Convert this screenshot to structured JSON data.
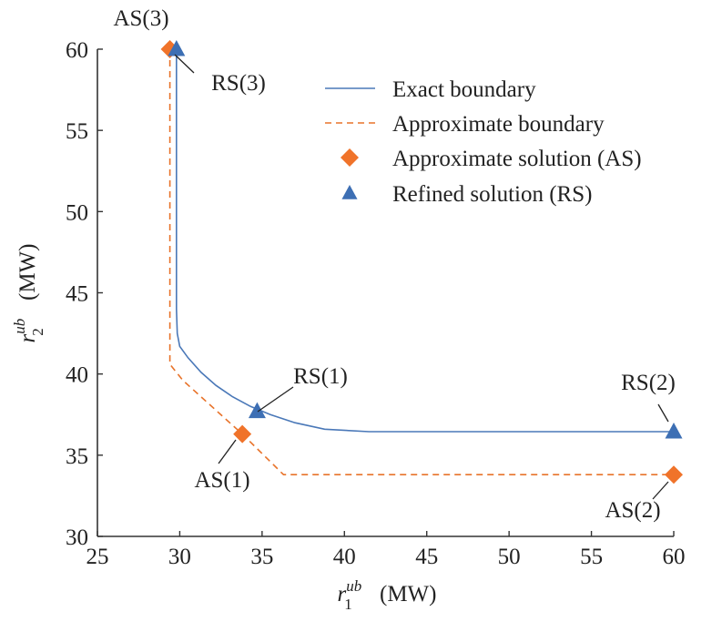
{
  "chart_data": {
    "type": "line",
    "title": "",
    "xlabel": {
      "base": "r",
      "sub": "1",
      "sup": "ub",
      "unit": "(MW)"
    },
    "ylabel": {
      "base": "r",
      "sub": "2",
      "sup": "ub",
      "unit": "(MW)"
    },
    "xlim": [
      25,
      60
    ],
    "ylim": [
      30,
      60
    ],
    "x_ticks": [
      25,
      30,
      35,
      40,
      45,
      50,
      55,
      60
    ],
    "y_ticks": [
      30,
      35,
      40,
      45,
      50,
      55,
      60
    ],
    "grid": false,
    "legend_position": "top-right",
    "colors": {
      "exact": "#4a78b8",
      "approx": "#e8732a",
      "as_marker": "#f0732a",
      "rs_marker": "#3d6fb4",
      "axis": "#333333"
    },
    "series": [
      {
        "name": "Exact boundary",
        "type": "line",
        "style": "solid",
        "points": [
          [
            29.8,
            60.0
          ],
          [
            29.8,
            44.0
          ],
          [
            29.85,
            42.5
          ],
          [
            30.0,
            41.7
          ],
          [
            30.5,
            41.0
          ],
          [
            31.3,
            40.1
          ],
          [
            32.2,
            39.3
          ],
          [
            33.2,
            38.6
          ],
          [
            34.3,
            38.0
          ],
          [
            35.5,
            37.5
          ],
          [
            37.0,
            37.0
          ],
          [
            38.8,
            36.6
          ],
          [
            41.5,
            36.45
          ],
          [
            60.0,
            36.45
          ]
        ]
      },
      {
        "name": "Approximate boundary",
        "type": "line",
        "style": "dashed",
        "points": [
          [
            29.4,
            60.0
          ],
          [
            29.4,
            40.6
          ],
          [
            30.2,
            39.6
          ],
          [
            33.8,
            36.3
          ],
          [
            36.3,
            33.8
          ],
          [
            60.0,
            33.8
          ]
        ]
      },
      {
        "name": "Approximate solution (AS)",
        "type": "scatter",
        "marker": "diamond",
        "points": [
          [
            29.4,
            60.0
          ],
          [
            33.8,
            36.3
          ],
          [
            60.0,
            33.8
          ]
        ]
      },
      {
        "name": "Refined solution (RS)",
        "type": "scatter",
        "marker": "triangle",
        "points": [
          [
            29.8,
            60.0
          ],
          [
            34.7,
            37.7
          ],
          [
            60.0,
            36.45
          ]
        ]
      }
    ],
    "annotations": [
      {
        "text": "AS(3)",
        "point": [
          29.4,
          60.0
        ]
      },
      {
        "text": "RS(3)",
        "point": [
          29.8,
          60.0
        ]
      },
      {
        "text": "RS(1)",
        "point": [
          34.7,
          37.7
        ]
      },
      {
        "text": "AS(1)",
        "point": [
          33.8,
          36.3
        ]
      },
      {
        "text": "RS(2)",
        "point": [
          60.0,
          36.45
        ]
      },
      {
        "text": "AS(2)",
        "point": [
          60.0,
          33.8
        ]
      }
    ]
  }
}
